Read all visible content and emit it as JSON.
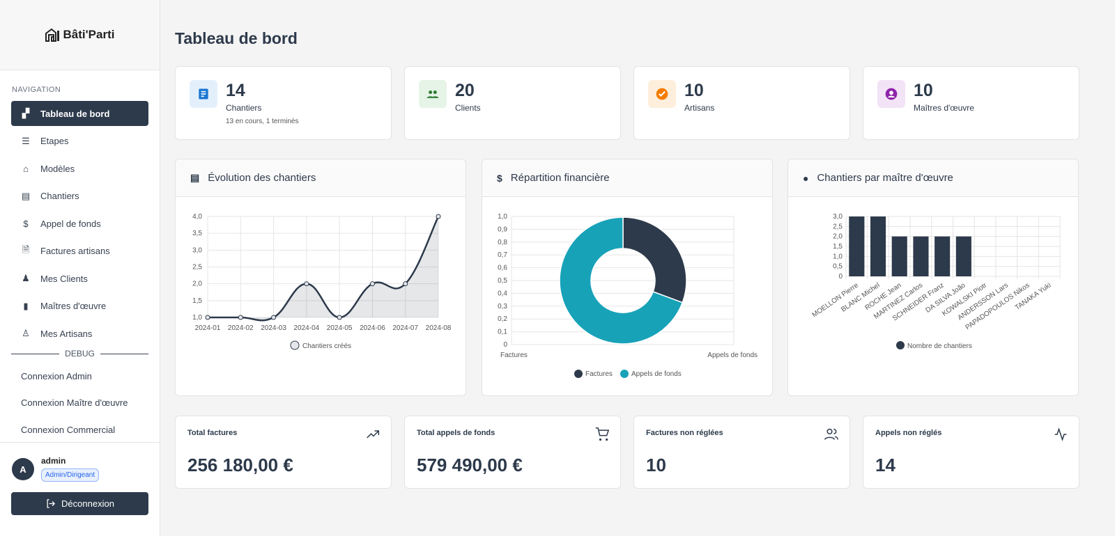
{
  "app": {
    "name": "Bâti'Parti"
  },
  "sidebar": {
    "nav_label": "NAVIGATION",
    "items": [
      {
        "label": "Tableau de bord",
        "icon": "dashboard-icon"
      },
      {
        "label": "Etapes",
        "icon": "list-icon"
      },
      {
        "label": "Modèles",
        "icon": "house-icon"
      },
      {
        "label": "Chantiers",
        "icon": "document-icon"
      },
      {
        "label": "Appel de fonds",
        "icon": "dollar-icon"
      },
      {
        "label": "Factures artisans",
        "icon": "file-icon"
      },
      {
        "label": "Mes Clients",
        "icon": "clients-icon"
      },
      {
        "label": "Maîtres d'œuvre",
        "icon": "architect-icon"
      },
      {
        "label": "Mes Artisans",
        "icon": "artisan-icon"
      }
    ],
    "debug_label": "DEBUG",
    "debug_items": [
      "Connexion Admin",
      "Connexion Maître d'œuvre",
      "Connexion Commercial"
    ],
    "user": {
      "initial": "A",
      "name": "admin",
      "role": "Admin/Dirigeant"
    },
    "logout": "Déconnexion"
  },
  "page_title": "Tableau de bord",
  "stats": [
    {
      "value": "14",
      "label": "Chantiers",
      "sub": "13 en cours, 1 terminés",
      "color": "#1976d2",
      "bg": "#e3f0fc",
      "icon": "document-icon"
    },
    {
      "value": "20",
      "label": "Clients",
      "color": "#2e7d32",
      "bg": "#e5f4e6",
      "icon": "people-icon"
    },
    {
      "value": "10",
      "label": "Artisans",
      "color": "#f57c00",
      "bg": "#fdefdc",
      "icon": "check-circle-icon"
    },
    {
      "value": "10",
      "label": "Maîtres d'œuvre",
      "color": "#8e24aa",
      "bg": "#f3e3f6",
      "icon": "account-circle-icon"
    }
  ],
  "charts_titles": [
    "Évolution des chantiers",
    "Répartition financière",
    "Chantiers par maître d'œuvre"
  ],
  "chart_data": [
    {
      "type": "line",
      "categories": [
        "2024-01",
        "2024-02",
        "2024-03",
        "2024-04",
        "2024-05",
        "2024-06",
        "2024-07",
        "2024-08"
      ],
      "series": [
        {
          "name": "Chantiers créés",
          "values": [
            1,
            1,
            1,
            2,
            1,
            2,
            2,
            4
          ]
        }
      ],
      "ylim": [
        1,
        4
      ],
      "yticks": [
        "1,0",
        "1,5",
        "2,0",
        "2,5",
        "3,0",
        "3,5",
        "4,0"
      ],
      "fill": true,
      "color": "#2d3a4b",
      "grid": true,
      "legend": "bottom"
    },
    {
      "type": "pie",
      "categories": [
        "Factures",
        "Appels de fonds"
      ],
      "values": [
        256180,
        579490
      ],
      "colors": [
        "#2d3a4b",
        "#17a2b8"
      ],
      "donut": true,
      "yticks": [
        "0",
        "0,1",
        "0,2",
        "0,3",
        "0,4",
        "0,5",
        "0,6",
        "0,7",
        "0,8",
        "0,9",
        "1,0"
      ],
      "grid": true,
      "legend": "bottom"
    },
    {
      "type": "bar",
      "categories": [
        "MOELLON Pierre",
        "BLANC Michel",
        "ROCHE Jean",
        "MARTINEZ Carlos",
        "SCHNEIDER Franz",
        "DA SILVA João",
        "KOWALSKI Piotr",
        "ANDERSSON Lars",
        "PAPADOPOULOS Nikos",
        "TANAKA Yuki"
      ],
      "series": [
        {
          "name": "Nombre de chantiers",
          "values": [
            3,
            3,
            2,
            2,
            2,
            2,
            0,
            0,
            0,
            0
          ]
        }
      ],
      "ylim": [
        0,
        3
      ],
      "yticks": [
        "0",
        "0,5",
        "1,0",
        "1,5",
        "2,0",
        "2,5",
        "3,0"
      ],
      "color": "#2d3a4b",
      "grid": true,
      "legend": "bottom"
    }
  ],
  "totals": [
    {
      "label": "Total factures",
      "value": "256 180,00 €",
      "icon": "trending-up-icon"
    },
    {
      "label": "Total appels de fonds",
      "value": "579 490,00 €",
      "icon": "cart-icon"
    },
    {
      "label": "Factures non réglées",
      "value": "10",
      "icon": "users-icon"
    },
    {
      "label": "Appels non réglés",
      "value": "14",
      "icon": "activity-icon"
    }
  ]
}
